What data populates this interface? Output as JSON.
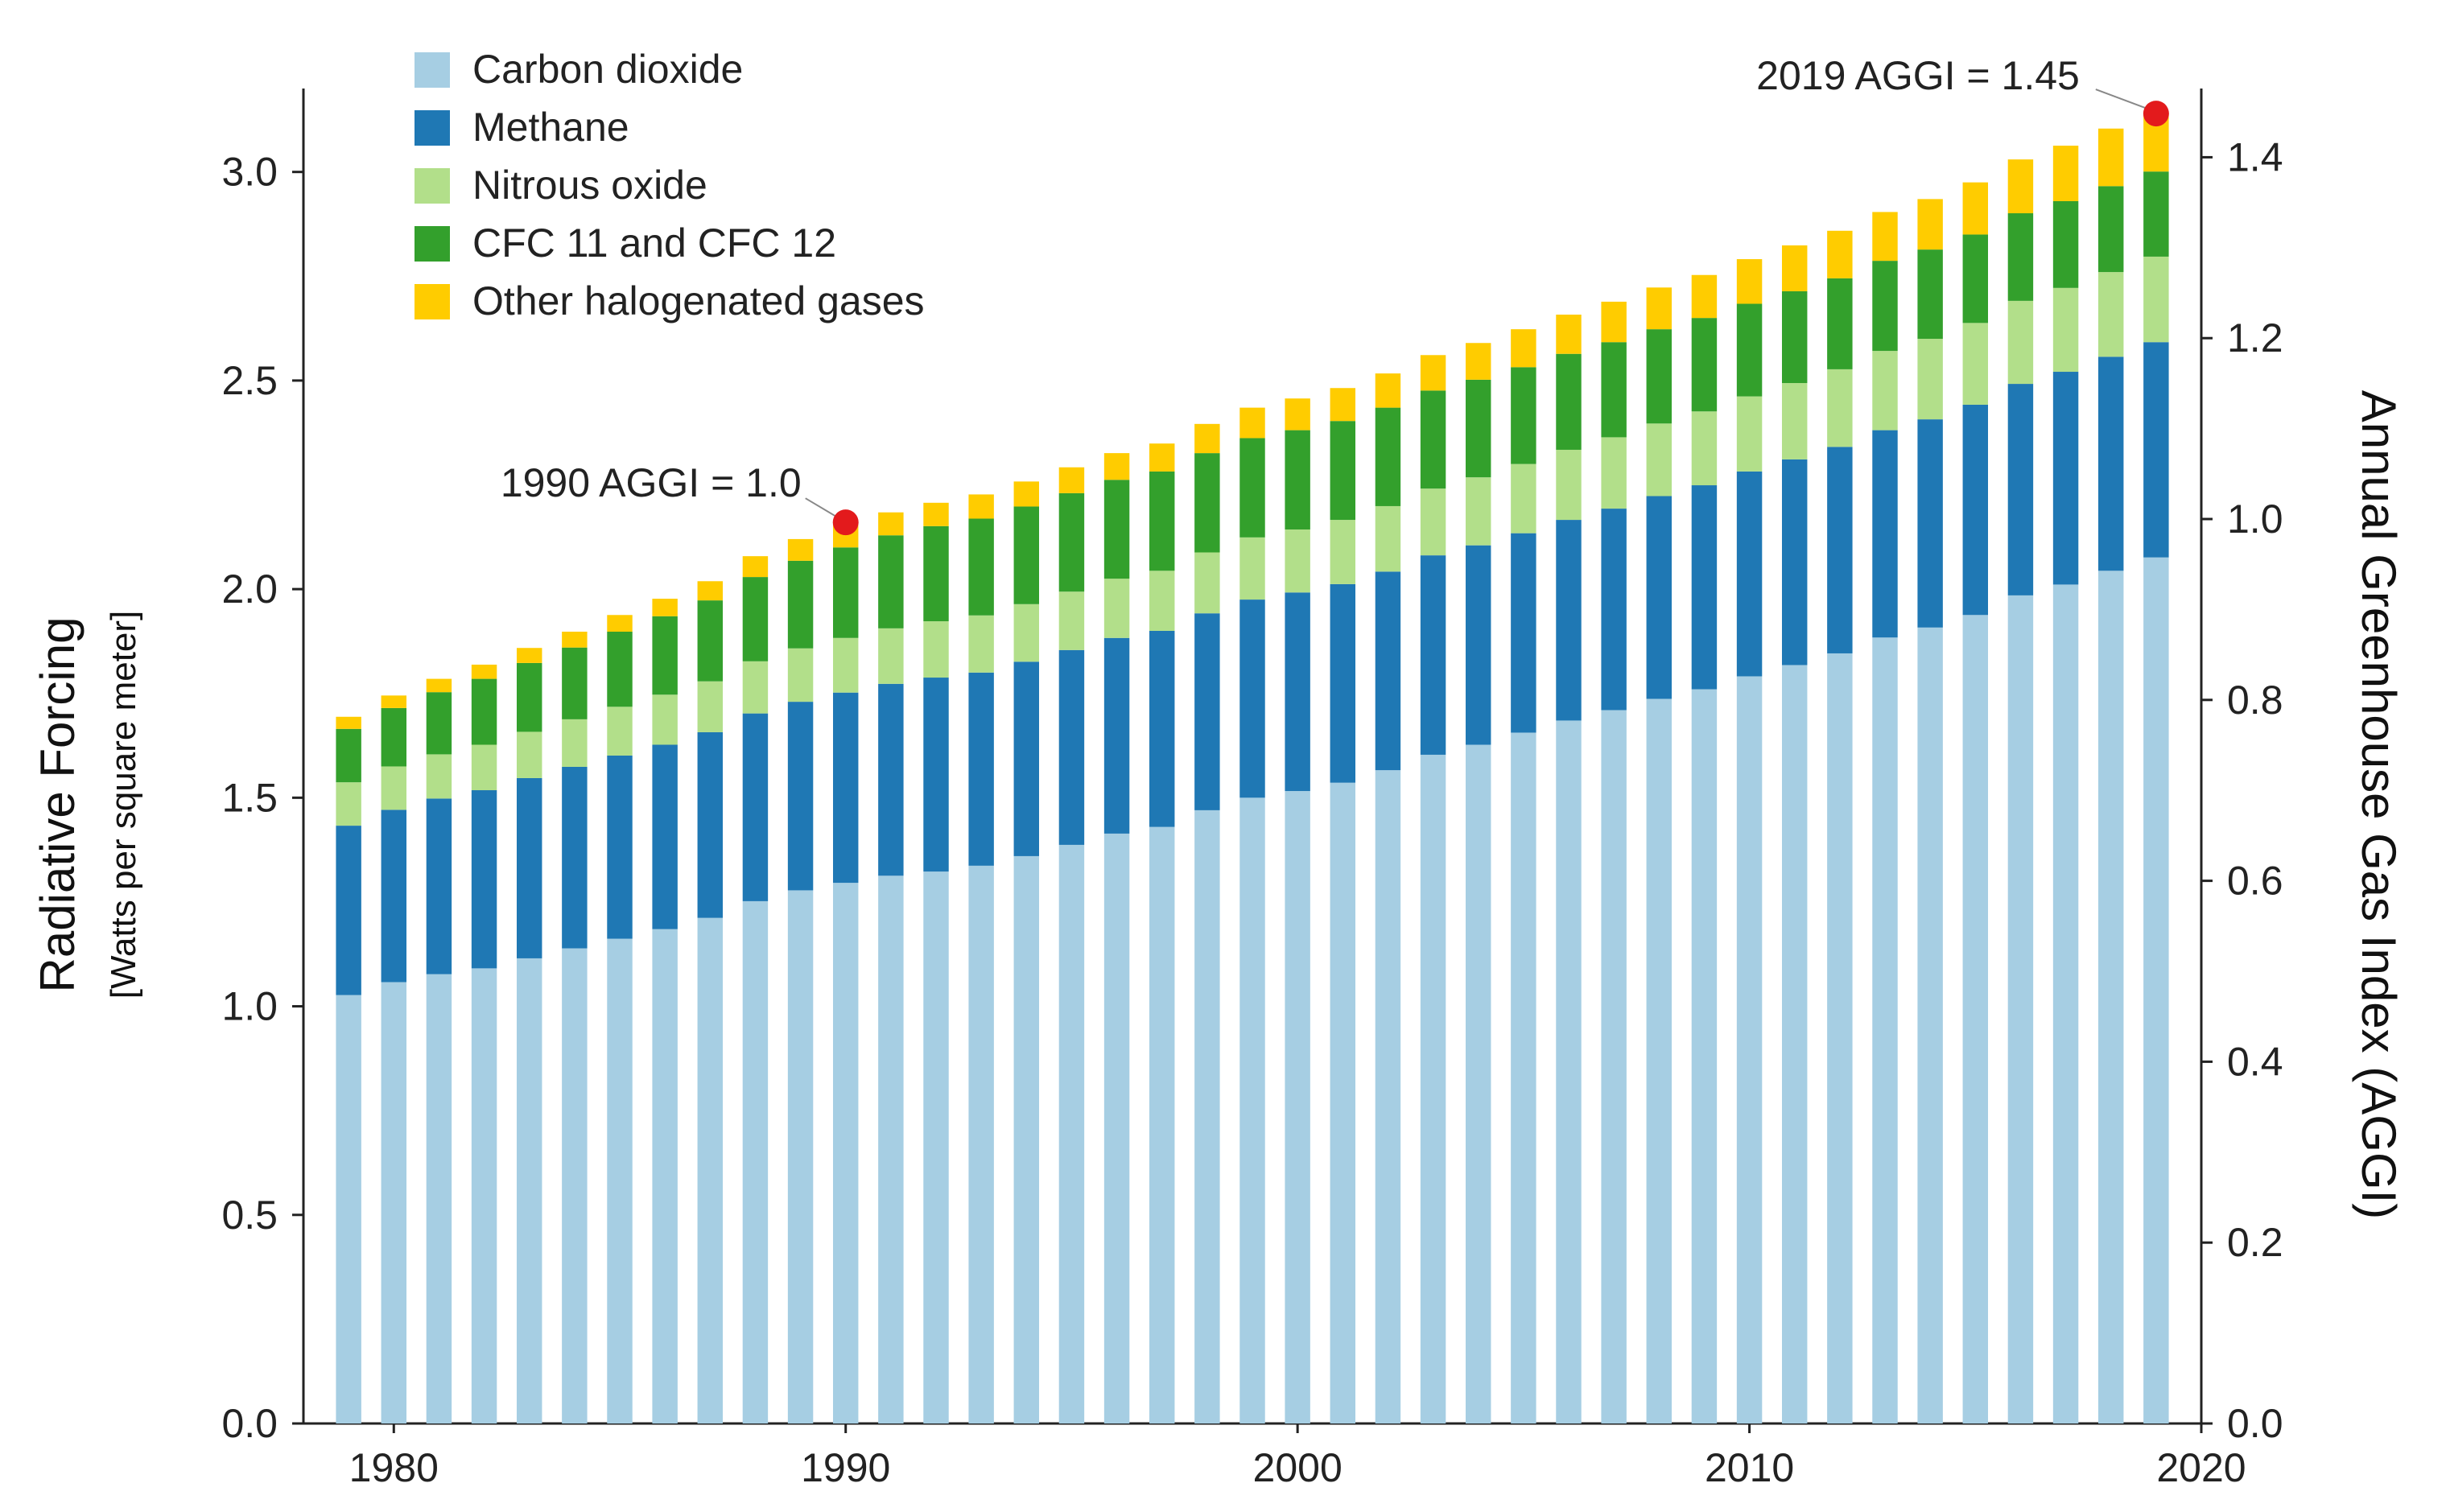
{
  "chart_data": {
    "type": "bar",
    "stacked": true,
    "title": "",
    "xlabel": "",
    "ylabel": "Radiative Forcing",
    "ylabel_sub": "[Watts per square meter]",
    "y2label": "Annual Greenhouse Gas Index (AGGI)",
    "xlim": [
      1978,
      2020
    ],
    "ylim": [
      0,
      3.2
    ],
    "y2lim": [
      0,
      1.476
    ],
    "x_ticks": [
      "1980",
      "1990",
      "2000",
      "2010",
      "2020"
    ],
    "y_ticks": [
      "0.0",
      "0.5",
      "1.0",
      "1.5",
      "2.0",
      "2.5",
      "3.0"
    ],
    "y2_ticks": [
      "0.0",
      "0.2",
      "0.4",
      "0.6",
      "0.8",
      "1.0",
      "1.2",
      "1.4"
    ],
    "categories": [
      1979,
      1980,
      1981,
      1982,
      1983,
      1984,
      1985,
      1986,
      1987,
      1988,
      1989,
      1990,
      1991,
      1992,
      1993,
      1994,
      1995,
      1996,
      1997,
      1998,
      1999,
      2000,
      2001,
      2002,
      2003,
      2004,
      2005,
      2006,
      2007,
      2008,
      2009,
      2010,
      2011,
      2012,
      2013,
      2014,
      2015,
      2016,
      2017,
      2018,
      2019
    ],
    "series": [
      {
        "name": "Carbon dioxide",
        "color": "#a6cee3",
        "values": [
          1.027,
          1.058,
          1.077,
          1.091,
          1.115,
          1.139,
          1.162,
          1.185,
          1.212,
          1.252,
          1.278,
          1.296,
          1.313,
          1.323,
          1.337,
          1.36,
          1.387,
          1.414,
          1.43,
          1.47,
          1.5,
          1.516,
          1.536,
          1.566,
          1.603,
          1.627,
          1.656,
          1.685,
          1.71,
          1.737,
          1.76,
          1.791,
          1.818,
          1.846,
          1.884,
          1.908,
          1.938,
          1.985,
          2.011,
          2.044,
          2.076
        ]
      },
      {
        "name": "Methane",
        "color": "#1f78b4",
        "values": [
          0.406,
          0.413,
          0.421,
          0.427,
          0.432,
          0.435,
          0.439,
          0.442,
          0.445,
          0.45,
          0.452,
          0.456,
          0.46,
          0.465,
          0.463,
          0.466,
          0.467,
          0.469,
          0.47,
          0.472,
          0.475,
          0.476,
          0.476,
          0.476,
          0.478,
          0.478,
          0.478,
          0.481,
          0.483,
          0.486,
          0.489,
          0.491,
          0.493,
          0.495,
          0.497,
          0.499,
          0.504,
          0.507,
          0.51,
          0.513,
          0.516
        ]
      },
      {
        "name": "Nitrous oxide",
        "color": "#b2df8a",
        "values": [
          0.104,
          0.104,
          0.106,
          0.109,
          0.111,
          0.114,
          0.117,
          0.12,
          0.122,
          0.125,
          0.128,
          0.131,
          0.133,
          0.135,
          0.137,
          0.138,
          0.14,
          0.142,
          0.144,
          0.146,
          0.149,
          0.151,
          0.154,
          0.157,
          0.16,
          0.163,
          0.166,
          0.168,
          0.171,
          0.174,
          0.177,
          0.18,
          0.183,
          0.186,
          0.19,
          0.193,
          0.196,
          0.199,
          0.201,
          0.203,
          0.205
        ]
      },
      {
        "name": "CFC 11 and CFC 12",
        "color": "#33a02c",
        "values": [
          0.128,
          0.14,
          0.149,
          0.158,
          0.165,
          0.172,
          0.18,
          0.188,
          0.194,
          0.202,
          0.21,
          0.217,
          0.223,
          0.228,
          0.232,
          0.234,
          0.236,
          0.237,
          0.238,
          0.238,
          0.238,
          0.238,
          0.237,
          0.236,
          0.235,
          0.234,
          0.232,
          0.23,
          0.228,
          0.226,
          0.224,
          0.222,
          0.22,
          0.218,
          0.216,
          0.214,
          0.212,
          0.21,
          0.208,
          0.206,
          0.204
        ]
      },
      {
        "name": "Other halogenated gases",
        "color": "#ffcc00",
        "values": [
          0.029,
          0.03,
          0.032,
          0.034,
          0.036,
          0.038,
          0.04,
          0.042,
          0.046,
          0.05,
          0.052,
          0.054,
          0.055,
          0.056,
          0.058,
          0.06,
          0.062,
          0.064,
          0.067,
          0.07,
          0.073,
          0.076,
          0.079,
          0.082,
          0.085,
          0.088,
          0.091,
          0.094,
          0.097,
          0.1,
          0.103,
          0.107,
          0.11,
          0.114,
          0.117,
          0.121,
          0.125,
          0.129,
          0.133,
          0.138,
          0.143
        ]
      }
    ],
    "annotations": [
      {
        "text": "1990 AGGI = 1.0",
        "year": 1990,
        "value": 2.16
      },
      {
        "text": "2019 AGGI = 1.45",
        "year": 2019,
        "value": 3.14
      }
    ],
    "marker_color": "#e31a1c",
    "legend_position": "top-left"
  }
}
